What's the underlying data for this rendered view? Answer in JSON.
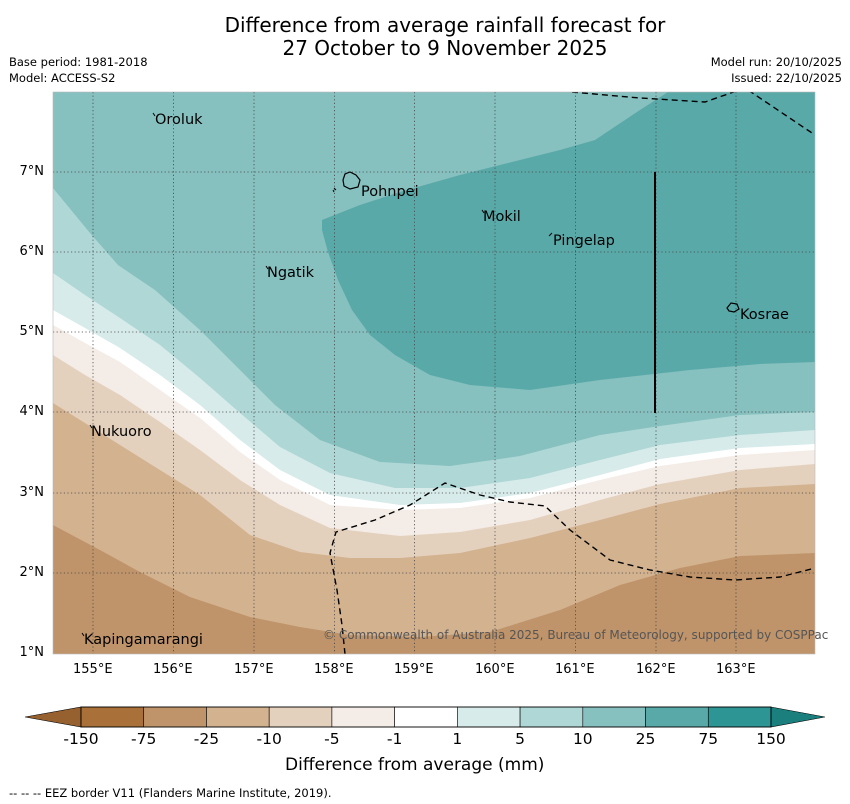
{
  "title": {
    "line1": "Difference from average rainfall forecast for",
    "line2": "27 October to 9 November 2025"
  },
  "meta": {
    "base_period": "Base period: 1981-2018",
    "model": "Model: ACCESS-S2",
    "model_run": "Model run: 20/10/2025",
    "issued": "Issued: 22/10/2025"
  },
  "map": {
    "lat_labels": [
      "7°N",
      "6°N",
      "5°N",
      "4°N",
      "3°N",
      "2°N",
      "1°N"
    ],
    "lon_labels": [
      "155°E",
      "156°E",
      "157°E",
      "158°E",
      "159°E",
      "160°E",
      "161°E",
      "162°E",
      "163°E"
    ],
    "places": [
      {
        "name": "Oroluk"
      },
      {
        "name": "Pohnpei"
      },
      {
        "name": "Mokil"
      },
      {
        "name": "Pingelap"
      },
      {
        "name": "Ngatik"
      },
      {
        "name": "Kosrae"
      },
      {
        "name": "Nukuoro"
      },
      {
        "name": "Kapingamarangi"
      }
    ],
    "copyright": "© Commonwealth of Australia 2025, Bureau of Meteorology, supported by COSPPac"
  },
  "colorbar": {
    "labels": [
      "-150",
      "-75",
      "-25",
      "-10",
      "-5",
      "-1",
      "1",
      "5",
      "10",
      "25",
      "75",
      "150"
    ],
    "colors": [
      "#a97139",
      "#c0946a",
      "#d3b290",
      "#e4d1bd",
      "#f4ece6",
      "#ffffff",
      "#d7ebea",
      "#afd7d6",
      "#86c0bf",
      "#5aa9a9",
      "#2d9593"
    ],
    "under_color": "#96602f",
    "over_color": "#1a7f7d",
    "title": "Difference from average (mm)"
  },
  "footnote": "--  --  -- EEZ border V11 (Flanders Marine Institute, 2019)."
}
